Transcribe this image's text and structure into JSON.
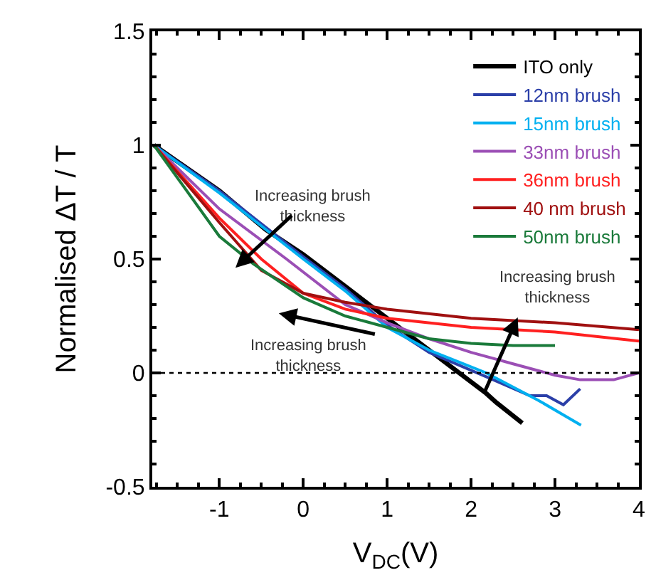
{
  "chart_data": {
    "type": "line",
    "xlabel": "V$_{DC}$(V)",
    "ylabel": "Normalised ΔT / T",
    "xlim": [
      -1.8,
      4
    ],
    "ylim": [
      -0.5,
      1.5
    ],
    "xticks": [
      -1,
      0,
      1,
      2,
      3,
      4
    ],
    "yticks": [
      -0.5,
      0,
      0.5,
      1,
      1.5
    ],
    "legend": "top right",
    "marker": "none",
    "line_style": "solid",
    "series": [
      {
        "name": "ITO only",
        "color": "#000000",
        "x": [
          -1.78,
          -1.0,
          -0.45,
          0,
          0.5,
          1,
          1.5,
          2.18,
          2.3,
          2.61
        ],
        "values": [
          1,
          0.8,
          0.63,
          0.52,
          0.38,
          0.24,
          0.1,
          -0.09,
          -0.13,
          -0.22
        ]
      },
      {
        "name": "12nm brush",
        "color": "#2b3fa8",
        "x": [
          -1.78,
          -1,
          0,
          0.5,
          1,
          1.5,
          2.2,
          2.7,
          2.9,
          3.1,
          3.3
        ],
        "values": [
          1,
          0.8,
          0.51,
          0.37,
          0.21,
          0.09,
          -0.02,
          -0.1,
          -0.1,
          -0.14,
          -0.07
        ]
      },
      {
        "name": "15nm brush",
        "color": "#00b0f0",
        "x": [
          -1.78,
          -1,
          0,
          0.5,
          1,
          1.5,
          2.18,
          2.8,
          3.31
        ],
        "values": [
          1,
          0.79,
          0.5,
          0.36,
          0.2,
          0.1,
          0,
          -0.12,
          -0.23
        ]
      },
      {
        "name": "33nm brush",
        "color": "#9b4fb5",
        "x": [
          -1.78,
          -1,
          -0.2,
          0.5,
          1,
          1.5,
          2,
          2.5,
          3,
          3.3,
          3.7,
          4
        ],
        "values": [
          1,
          0.72,
          0.5,
          0.3,
          0.22,
          0.15,
          0.09,
          0.04,
          -0.01,
          -0.03,
          -0.03,
          0
        ]
      },
      {
        "name": "36nm brush",
        "color": "#ff2020",
        "x": [
          -1.78,
          -1,
          -0.5,
          0,
          0.5,
          1,
          2,
          3,
          4
        ],
        "values": [
          1,
          0.68,
          0.5,
          0.35,
          0.28,
          0.24,
          0.2,
          0.18,
          0.14
        ]
      },
      {
        "name": "40 nm brush",
        "color": "#a01010",
        "x": [
          -1.78,
          -1,
          -0.5,
          0,
          0.5,
          1,
          2,
          3,
          4
        ],
        "values": [
          1,
          0.66,
          0.45,
          0.35,
          0.31,
          0.28,
          0.24,
          0.22,
          0.19
        ]
      },
      {
        "name": "50nm brush",
        "color": "#1a7a3a",
        "x": [
          -1.78,
          -1,
          -0.6,
          0,
          0.5,
          1,
          1.5,
          2,
          2.5,
          3
        ],
        "values": [
          1,
          0.6,
          0.48,
          0.33,
          0.25,
          0.2,
          0.15,
          0.13,
          0.12,
          0.12
        ]
      }
    ],
    "ref_lines": [
      {
        "axis": "y",
        "value": 0,
        "color": "#000000",
        "line_style": "dotted"
      }
    ],
    "annotations": [
      "Increasing brush\nthickness",
      "Increasing brush\nthickness",
      "Increasing brush\nthickness"
    ]
  }
}
